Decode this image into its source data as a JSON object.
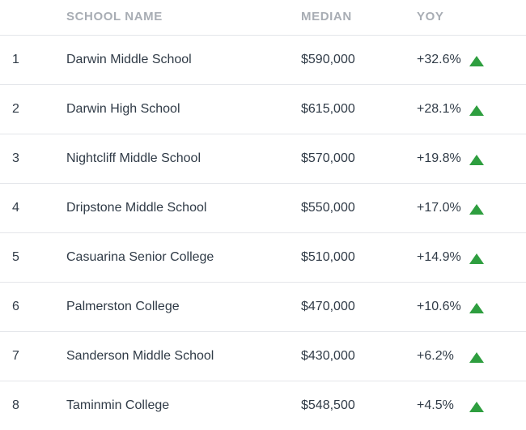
{
  "header": {
    "col_name": "SCHOOL NAME",
    "col_median": "MEDIAN",
    "col_yoy": "YOY"
  },
  "colors": {
    "up_arrow": "#2e9e3f",
    "header_text": "#a8adb4",
    "divider": "#e4e6ea"
  },
  "rows": [
    {
      "rank": "1",
      "name": "Darwin Middle School",
      "median": "$590,000",
      "yoy": "+32.6%",
      "trend": "up-arrow-icon"
    },
    {
      "rank": "2",
      "name": "Darwin High School",
      "median": "$615,000",
      "yoy": "+28.1%",
      "trend": "up-arrow-icon"
    },
    {
      "rank": "3",
      "name": "Nightcliff Middle School",
      "median": "$570,000",
      "yoy": "+19.8%",
      "trend": "up-arrow-icon"
    },
    {
      "rank": "4",
      "name": "Dripstone Middle School",
      "median": "$550,000",
      "yoy": "+17.0%",
      "trend": "up-arrow-icon"
    },
    {
      "rank": "5",
      "name": "Casuarina Senior College",
      "median": "$510,000",
      "yoy": "+14.9%",
      "trend": "up-arrow-icon"
    },
    {
      "rank": "6",
      "name": "Palmerston College",
      "median": "$470,000",
      "yoy": "+10.6%",
      "trend": "up-arrow-icon"
    },
    {
      "rank": "7",
      "name": "Sanderson Middle School",
      "median": "$430,000",
      "yoy": "+6.2%",
      "trend": "up-arrow-icon"
    },
    {
      "rank": "8",
      "name": "Taminmin College",
      "median": "$548,500",
      "yoy": "+4.5%",
      "trend": "up-arrow-icon"
    }
  ]
}
